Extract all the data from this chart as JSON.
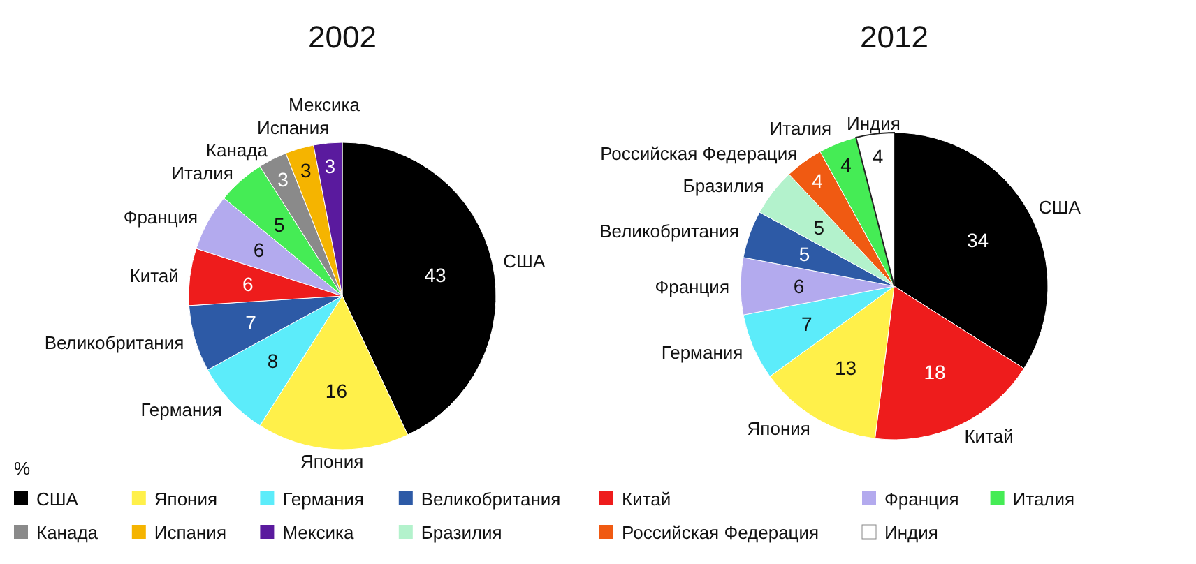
{
  "chart_data": [
    {
      "type": "pie",
      "title": "2002",
      "legend": "bottom",
      "legend_title": "%",
      "data_labels": true,
      "categories": [
        "США",
        "Япония",
        "Германия",
        "Великобритания",
        "Китай",
        "Франция",
        "Италия",
        "Канада",
        "Испания",
        "Мексика"
      ],
      "values": [
        43,
        16,
        8,
        7,
        6,
        6,
        5,
        3,
        3,
        3
      ],
      "colors": [
        "#000000",
        "#fff04a",
        "#5cecfa",
        "#2d5aa6",
        "#ee1c1c",
        "#b3aaee",
        "#45ec55",
        "#8a8a8a",
        "#f5b400",
        "#5a1a9e"
      ]
    },
    {
      "type": "pie",
      "title": "2012",
      "legend": "bottom",
      "data_labels": true,
      "categories": [
        "США",
        "Китай",
        "Япония",
        "Германия",
        "Франция",
        "Великобритания",
        "Бразилия",
        "Российская Федерация",
        "Италия",
        "Индия"
      ],
      "values": [
        34,
        18,
        13,
        7,
        6,
        5,
        5,
        4,
        4,
        4
      ],
      "colors": [
        "#000000",
        "#ee1c1c",
        "#fff04a",
        "#5cecfa",
        "#b3aaee",
        "#2d5aa6",
        "#b3f2cc",
        "#f05a12",
        "#45ec55",
        "#ffffff"
      ]
    }
  ]
}
